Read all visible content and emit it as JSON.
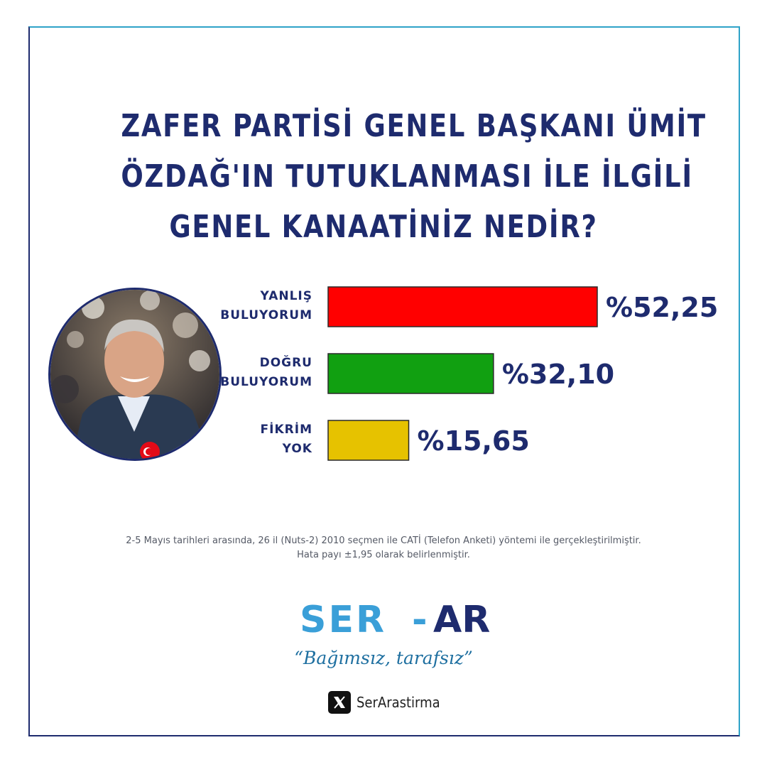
{
  "title_lines": [
    "ZAFER PARTİSİ GENEL BAŞKANI ÜMİT",
    "ÖZDAĞ'IN TUTUKLANMASI İLE İLGİLİ",
    "GENEL KANAATİNİZ NEDİR?"
  ],
  "chart_data": {
    "type": "bar",
    "orientation": "horizontal",
    "categories": [
      [
        "YANLIŞ",
        "BULUYORUM"
      ],
      [
        "DOĞRU",
        "BULUYORUM"
      ],
      [
        "FİKRİM",
        "YOK"
      ]
    ],
    "values": [
      52.25,
      32.1,
      15.65
    ],
    "value_labels": [
      "%52,25",
      "%32,10",
      "%15,65"
    ],
    "colors": [
      "#ff0000",
      "#11a011",
      "#e6c200"
    ],
    "xlim": [
      0,
      52.25
    ]
  },
  "footnote_lines": [
    "2-5 Mayıs tarihleri arasında, 26 il (Nuts-2) 2010 seçmen ile CATİ (Telefon Anketi) yöntemi ile gerçekleştirilmiştir.",
    "Hata payı ±1,95 olarak belirlenmiştir."
  ],
  "brand": {
    "name_left": "SER",
    "name_dash": "-",
    "name_right": "AR",
    "tagline": "“Bağımsız, tarafsız”",
    "social_handle": "SerArastirma",
    "primary_color": "#3a9fd8",
    "dark_color": "#1e2b6e"
  }
}
